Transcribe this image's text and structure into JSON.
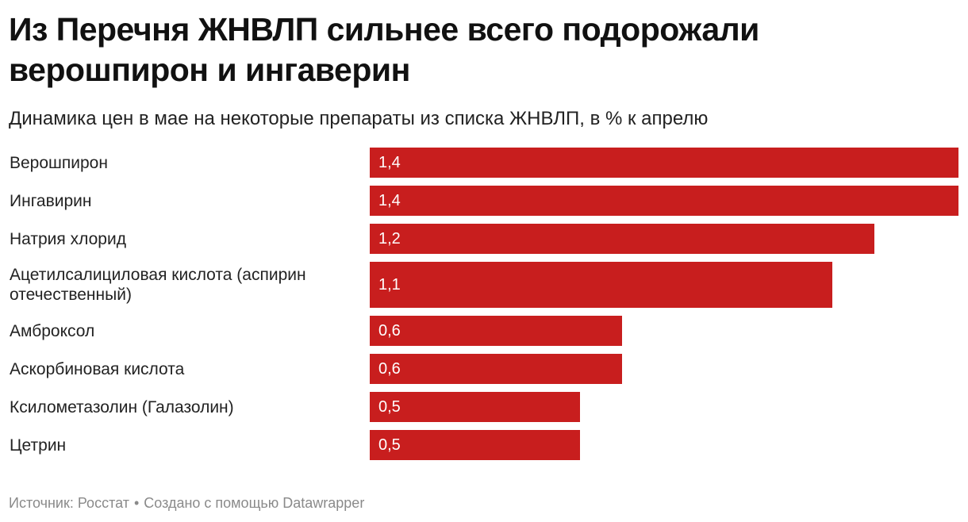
{
  "header": {
    "title": "Из Перечня ЖНВЛП сильнее всего подорожали верошпирон и ингаверин",
    "subtitle": "Динамика цен в мае на некоторые препараты из списка ЖНВЛП, в % к апрелю"
  },
  "footer": {
    "source": "Источник: Росстат",
    "separator": "•",
    "credit": "Создано с помощью Datawrapper"
  },
  "colors": {
    "bar": "#c81e1e",
    "value_text": "#ffffff"
  },
  "chart_data": {
    "type": "bar",
    "orientation": "horizontal",
    "title": "Из Перечня ЖНВЛП сильнее всего подорожали верошпирон и ингаверин",
    "subtitle": "Динамика цен в мае на некоторые препараты из списка ЖНВЛП, в % к апрелю",
    "xlabel": "",
    "ylabel": "",
    "xlim": [
      0,
      1.4
    ],
    "unit": "%",
    "categories": [
      "Верошпирон",
      "Ингавирин",
      "Натрия хлорид",
      "Ацетилсалициловая кислота (аспирин отечественный)",
      "Амброксол",
      "Аскорбиновая кислота",
      "Ксилометазолин (Галазолин)",
      "Цетрин"
    ],
    "values": [
      1.4,
      1.4,
      1.2,
      1.1,
      0.6,
      0.6,
      0.5,
      0.5
    ],
    "value_labels": [
      "1,4",
      "1,4",
      "1,2",
      "1,1",
      "0,6",
      "0,6",
      "0,5",
      "0,5"
    ]
  }
}
